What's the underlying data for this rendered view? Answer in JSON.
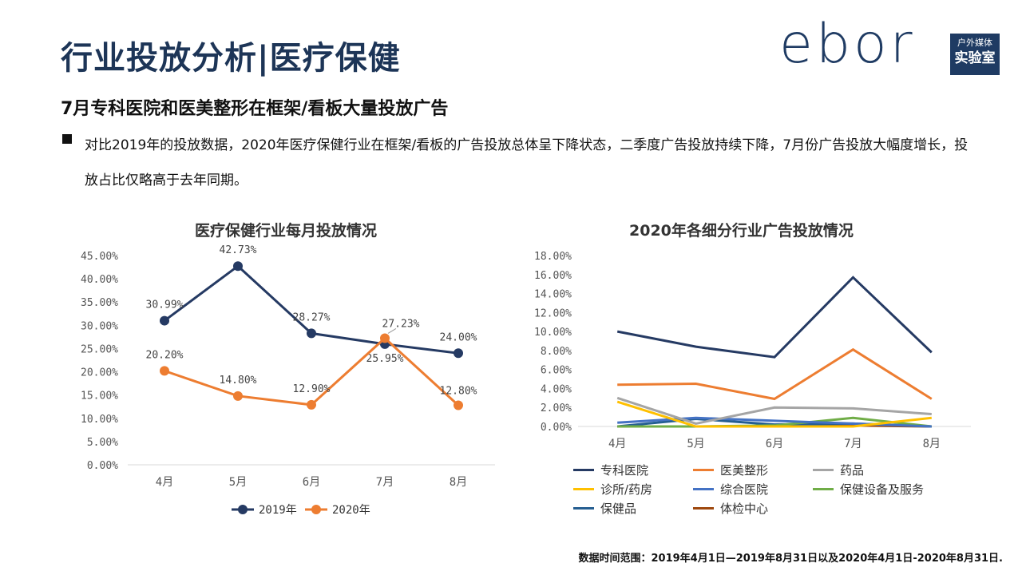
{
  "header": {
    "title": "行业投放分析|医疗保健",
    "logo_text": "ebor",
    "logo_badge_line1": "户外媒体",
    "logo_badge_line2": "实验室"
  },
  "subtitle": "7月专科医院和医美整形在框架/看板大量投放广告",
  "bullet": "对比2019年的投放数据，2020年医疗保健行业在框架/看板的广告投放总体呈下降状态，二季度广告投放持续下降，7月份广告投放大幅度增长，投放占比仅略高于去年同期。",
  "footnote": "数据时间范围：2019年4月1日—2019年8月31日以及2020年4月1日-2020年8月31日.",
  "colors": {
    "navy": "#253a63",
    "orange": "#ed7d31",
    "gray": "#a5a5a5",
    "yellow": "#ffc000",
    "blue": "#4472c4",
    "green": "#70ad47",
    "steel": "#255e91",
    "brown": "#9e480e"
  },
  "chart_data": [
    {
      "type": "line",
      "title": "医疗保健行业每月投放情况",
      "categories": [
        "4月",
        "5月",
        "6月",
        "7月",
        "8月"
      ],
      "ylim": [
        0,
        45
      ],
      "yticks": [
        "0.00%",
        "5.00%",
        "10.00%",
        "15.00%",
        "20.00%",
        "25.00%",
        "30.00%",
        "35.00%",
        "40.00%",
        "45.00%"
      ],
      "series": [
        {
          "name": "2019年",
          "color": "#253a63",
          "values": [
            30.99,
            42.73,
            28.27,
            25.95,
            24.0
          ],
          "labels": [
            "30.99%",
            "42.73%",
            "28.27%",
            "25.95%",
            "24.00%"
          ]
        },
        {
          "name": "2020年",
          "color": "#ed7d31",
          "values": [
            20.2,
            14.8,
            12.9,
            27.23,
            12.8
          ],
          "labels": [
            "20.20%",
            "14.80%",
            "12.90%",
            "27.23%",
            "12.80%"
          ]
        }
      ],
      "legend": "bottom"
    },
    {
      "type": "line",
      "title": "2020年各细分行业广告投放情况",
      "categories": [
        "4月",
        "5月",
        "6月",
        "7月",
        "8月"
      ],
      "ylim": [
        0,
        18
      ],
      "yticks": [
        "0.00%",
        "2.00%",
        "4.00%",
        "6.00%",
        "8.00%",
        "10.00%",
        "12.00%",
        "14.00%",
        "16.00%",
        "18.00%"
      ],
      "series": [
        {
          "name": "专科医院",
          "color": "#253a63",
          "values": [
            10.0,
            8.4,
            7.3,
            15.7,
            7.8
          ]
        },
        {
          "name": "医美整形",
          "color": "#ed7d31",
          "values": [
            4.4,
            4.5,
            2.9,
            8.1,
            2.9
          ]
        },
        {
          "name": "药品",
          "color": "#a5a5a5",
          "values": [
            3.0,
            0.3,
            2.0,
            1.9,
            1.3
          ]
        },
        {
          "name": "诊所/药房",
          "color": "#ffc000",
          "values": [
            2.6,
            0.0,
            0.0,
            0.0,
            0.9
          ]
        },
        {
          "name": "综合医院",
          "color": "#4472c4",
          "values": [
            0.4,
            0.9,
            0.6,
            0.3,
            0.0
          ]
        },
        {
          "name": "保健设备及服务",
          "color": "#70ad47",
          "values": [
            0.0,
            0.0,
            0.1,
            0.9,
            0.0
          ]
        },
        {
          "name": "保健品",
          "color": "#255e91",
          "values": [
            0.0,
            0.8,
            0.2,
            0.3,
            0.0
          ]
        },
        {
          "name": "体检中心",
          "color": "#9e480e",
          "values": [
            0.0,
            0.0,
            0.0,
            0.1,
            0.0
          ]
        }
      ],
      "legend": "bottom"
    }
  ]
}
